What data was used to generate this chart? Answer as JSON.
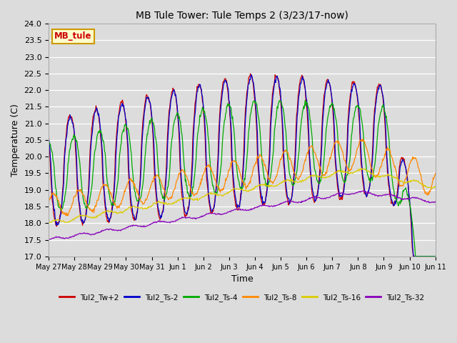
{
  "title": "MB Tule Tower: Tule Temps 2 (3/23/17-now)",
  "xlabel": "Time",
  "ylabel": "Temperature (C)",
  "ylim": [
    17.0,
    24.0
  ],
  "yticks": [
    17.0,
    17.5,
    18.0,
    18.5,
    19.0,
    19.5,
    20.0,
    20.5,
    21.0,
    21.5,
    22.0,
    22.5,
    23.0,
    23.5,
    24.0
  ],
  "background_color": "#dcdcdc",
  "legend_label": "MB_tule",
  "legend_bg": "#ffffcc",
  "legend_border": "#cc9900",
  "series_colors": {
    "Tul2_Tw+2": "#cc0000",
    "Tul2_Ts-2": "#0000cc",
    "Tul2_Ts-4": "#00aa00",
    "Tul2_Ts-8": "#ff8800",
    "Tul2_Ts-16": "#ddcc00",
    "Tul2_Ts-32": "#8800bb"
  },
  "x_tick_labels": [
    "May 27",
    "May 28",
    "May 29",
    "May 30",
    "May 31",
    "Jun 1",
    "Jun 2",
    "Jun 3",
    "Jun 4",
    "Jun 5",
    "Jun 6",
    "Jun 7",
    "Jun 8",
    "Jun 9",
    "Jun 10",
    "Jun 11"
  ]
}
